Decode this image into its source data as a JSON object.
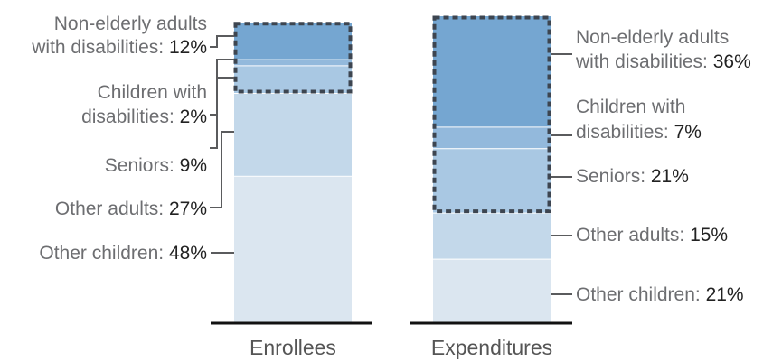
{
  "chart_data": {
    "type": "bar",
    "stacked": true,
    "normalized_percent": true,
    "categories": [
      "Enrollees",
      "Expenditures"
    ],
    "series": [
      {
        "name": "Other children",
        "values": [
          48,
          21
        ],
        "color": "#dbe6f0"
      },
      {
        "name": "Other adults",
        "values": [
          27,
          15
        ],
        "color": "#c3d8ea"
      },
      {
        "name": "Seniors",
        "values": [
          9,
          21
        ],
        "color": "#a9c8e3"
      },
      {
        "name": "Children with disabilities",
        "values": [
          2,
          7
        ],
        "color": "#93b9dc"
      },
      {
        "name": "Non-elderly adults with disabilities",
        "values": [
          12,
          36
        ],
        "color": "#75a6d1"
      }
    ],
    "highlight": {
      "style": "dashed-box",
      "series": [
        "Seniors",
        "Children with disabilities",
        "Non-elderly adults with disabilities"
      ],
      "color": "#3d4550"
    },
    "labels": {
      "Enrollees": [
        {
          "series": "Non-elderly adults with disabilities",
          "lines": [
            "Non-elderly adults",
            "with disabilities: "
          ],
          "value": "12%"
        },
        {
          "series": "Children with disabilities",
          "lines": [
            "Children with",
            "disabilities: "
          ],
          "value": "2%"
        },
        {
          "series": "Seniors",
          "lines": [
            "Seniors: "
          ],
          "value": "9%"
        },
        {
          "series": "Other adults",
          "lines": [
            "Other adults: "
          ],
          "value": "27%"
        },
        {
          "series": "Other children",
          "lines": [
            "Other children: "
          ],
          "value": "48%"
        }
      ],
      "Expenditures": [
        {
          "series": "Non-elderly adults with disabilities",
          "lines": [
            "Non-elderly adults",
            "with disabilities: "
          ],
          "value": "36%"
        },
        {
          "series": "Children with disabilities",
          "lines": [
            "Children with",
            "disabilities: "
          ],
          "value": "7%"
        },
        {
          "series": "Seniors",
          "lines": [
            "Seniors: "
          ],
          "value": "21%"
        },
        {
          "series": "Other adults",
          "lines": [
            "Other adults: "
          ],
          "value": "15%"
        },
        {
          "series": "Other children",
          "lines": [
            "Other children: "
          ],
          "value": "21%"
        }
      ]
    },
    "xlabel": "",
    "ylabel": "",
    "ylim": [
      0,
      100
    ]
  }
}
